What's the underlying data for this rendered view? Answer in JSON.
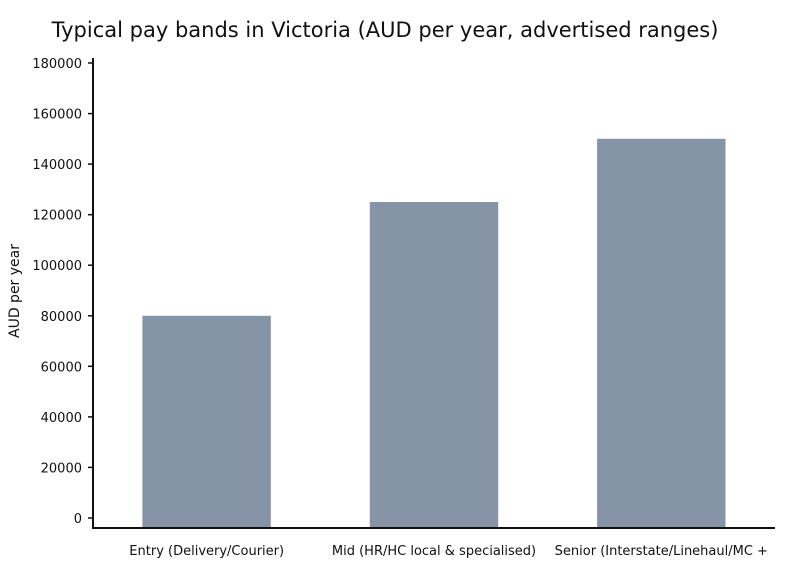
{
  "chart_data": {
    "type": "bar",
    "title": "Typical pay bands in Victoria (AUD per year, advertised ranges)",
    "xlabel": "",
    "ylabel": "AUD per year",
    "categories": [
      "Entry (Delivery/Courier)",
      "Mid (HR/HC local & specialised)",
      "Senior (Interstate/Linehaul/MC +"
    ],
    "values": [
      80000,
      125000,
      150000
    ],
    "ylim": [
      0,
      180000
    ],
    "yticks": [
      0,
      20000,
      40000,
      60000,
      80000,
      100000,
      120000,
      140000,
      160000,
      180000
    ],
    "ytick_labels": [
      "0",
      "20000",
      "40000",
      "60000",
      "80000",
      "100000",
      "120000",
      "140000",
      "160000",
      "180000"
    ],
    "bar_color": "#8594a6",
    "grid": false,
    "legend": "none"
  }
}
